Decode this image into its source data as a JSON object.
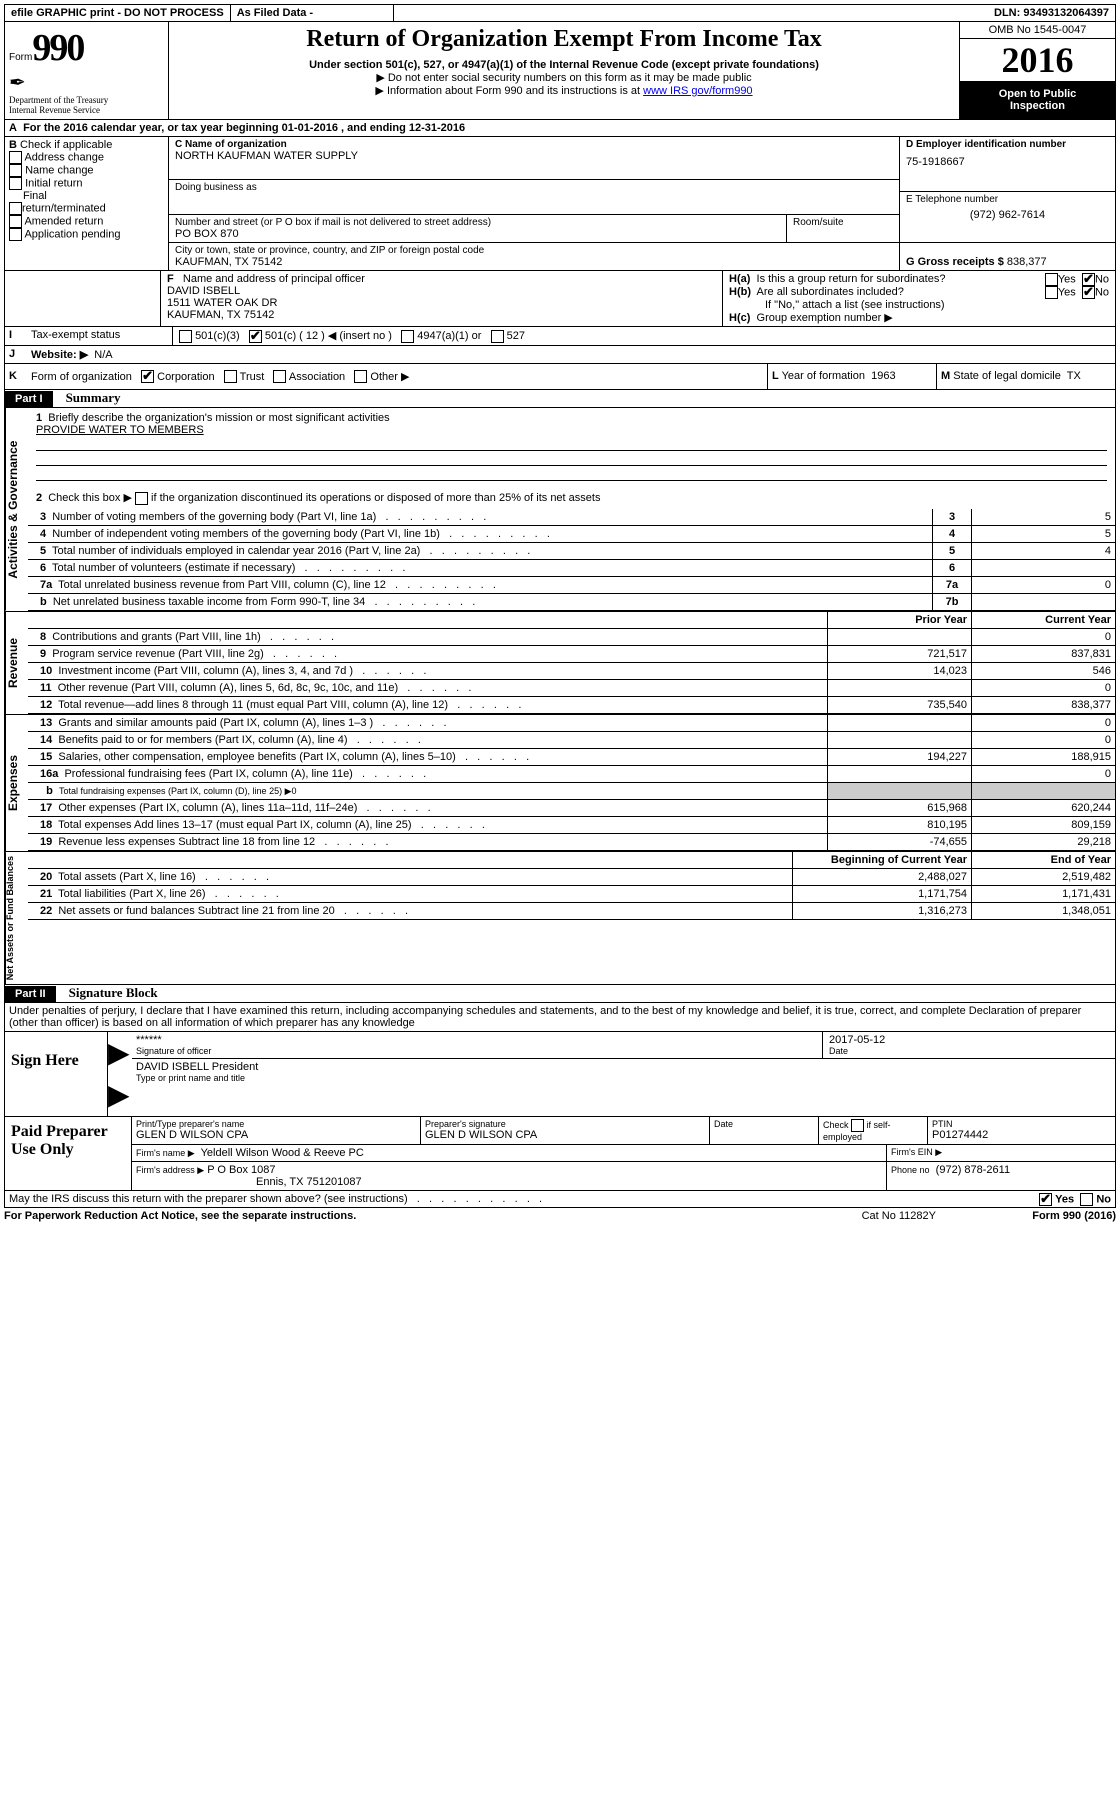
{
  "topbar": {
    "efile": "efile GRAPHIC print - DO NOT PROCESS",
    "asfiled": "As Filed Data -",
    "dln_label": "DLN:",
    "dln": "93493132064397"
  },
  "header": {
    "form_label": "Form",
    "form_no": "990",
    "dept1": "Department of the Treasury",
    "dept2": "Internal Revenue Service",
    "title": "Return of Organization Exempt From Income Tax",
    "sub1": "Under section 501(c), 527, or 4947(a)(1) of the Internal Revenue Code (except private foundations)",
    "sub2": "▶ Do not enter social security numbers on this form as it may be made public",
    "sub3_pre": "▶ Information about Form 990 and its instructions is at ",
    "sub3_link": "www IRS gov/form990",
    "omb_label": "OMB No 1545-0047",
    "year": "2016",
    "open1": "Open to Public",
    "open2": "Inspection"
  },
  "A": {
    "pre": "For the 2016 calendar year, or tax year beginning ",
    "begin": "01-01-2016",
    "mid": " , and ending ",
    "end": "12-31-2016"
  },
  "B": {
    "label": "B",
    "check": "Check if applicable",
    "addr": "Address change",
    "name": "Name change",
    "init": "Initial return",
    "final1": "Final",
    "final2": "return/terminated",
    "amended": "Amended return",
    "app": "Application pending"
  },
  "C": {
    "label_name": "C Name of organization",
    "org": "NORTH KAUFMAN WATER SUPPLY",
    "dba": "Doing business as",
    "street_label": "Number and street (or P O  box if mail is not delivered to street address)",
    "room_label": "Room/suite",
    "street": "PO BOX 870",
    "city_label": "City or town, state or province, country, and ZIP or foreign postal code",
    "city": "KAUFMAN, TX  75142"
  },
  "D": {
    "label": "D Employer identification number",
    "ein": "75-1918667"
  },
  "E": {
    "label": "E Telephone number",
    "phone": "(972) 962-7614"
  },
  "G": {
    "label": "G Gross receipts $",
    "val": "838,377"
  },
  "F": {
    "label": "F   Name and address of principal officer",
    "n": "DAVID ISBELL",
    "a1": "1511 WATER OAK DR",
    "a2": "KAUFMAN, TX  75142"
  },
  "H": {
    "a_label": "H(a)",
    "a_text": "Is this a group return for subordinates?",
    "b_label": "H(b)",
    "b_text": "Are all subordinates included?",
    "note": "If \"No,\" attach a list  (see instructions)",
    "c_label": "H(c)",
    "c_text": "Group exemption number ▶",
    "yes": "Yes",
    "no": "No"
  },
  "I": {
    "label": "I",
    "text": "Tax-exempt status",
    "o1": "501(c)(3)",
    "o2": "501(c) ( 12 ) ◀ (insert no )",
    "o3": "4947(a)(1) or",
    "o4": "527"
  },
  "J": {
    "label": "J",
    "text": "Website: ▶",
    "val": "N/A"
  },
  "K": {
    "label": "K",
    "text": "Form of organization",
    "corp": "Corporation",
    "trust": "Trust",
    "assoc": "Association",
    "other": "Other ▶"
  },
  "L": {
    "label": "L",
    "text": "Year of formation",
    "val": "1963"
  },
  "M": {
    "label": "M",
    "text": "State of legal domicile",
    "val": "TX"
  },
  "part1": {
    "label": "Part I",
    "title": "Summary",
    "sec1": "Activities & Governance",
    "sec2": "Revenue",
    "sec3": "Expenses",
    "sec4": "Net Assets or Fund Balances",
    "l1_label": "1",
    "l1": "Briefly describe the organization's mission or most significant activities",
    "l1_val": "PROVIDE WATER TO MEMBERS",
    "l2_label": "2",
    "l2": "Check this box ▶        if the organization discontinued its operations or disposed of more than 25% of its net assets",
    "lines": [
      {
        "n": "3",
        "t": "Number of voting members of the governing body (Part VI, line 1a)",
        "box": "3",
        "v": "5"
      },
      {
        "n": "4",
        "t": "Number of independent voting members of the governing body (Part VI, line 1b)",
        "box": "4",
        "v": "5"
      },
      {
        "n": "5",
        "t": "Total number of individuals employed in calendar year 2016 (Part V, line 2a)",
        "box": "5",
        "v": "4"
      },
      {
        "n": "6",
        "t": "Total number of volunteers (estimate if necessary)",
        "box": "6",
        "v": ""
      },
      {
        "n": "7a",
        "t": "Total unrelated business revenue from Part VIII, column (C), line 12",
        "box": "7a",
        "v": "0"
      },
      {
        "n": "b",
        "t": "Net unrelated business taxable income from Form 990-T, line 34",
        "box": "7b",
        "v": ""
      }
    ],
    "col_prior": "Prior Year",
    "col_curr": "Current Year",
    "col_boy": "Beginning of Current Year",
    "col_eoy": "End of Year",
    "rev": [
      {
        "n": "8",
        "t": "Contributions and grants (Part VIII, line 1h)",
        "p": "",
        "c": "0"
      },
      {
        "n": "9",
        "t": "Program service revenue (Part VIII, line 2g)",
        "p": "721,517",
        "c": "837,831"
      },
      {
        "n": "10",
        "t": "Investment income (Part VIII, column (A), lines 3, 4, and 7d )",
        "p": "14,023",
        "c": "546"
      },
      {
        "n": "11",
        "t": "Other revenue (Part VIII, column (A), lines 5, 6d, 8c, 9c, 10c, and 11e)",
        "p": "",
        "c": "0"
      },
      {
        "n": "12",
        "t": "Total revenue—add lines 8 through 11 (must equal Part VIII, column (A), line 12)",
        "p": "735,540",
        "c": "838,377"
      }
    ],
    "exp": [
      {
        "n": "13",
        "t": "Grants and similar amounts paid (Part IX, column (A), lines 1–3 )",
        "p": "",
        "c": "0"
      },
      {
        "n": "14",
        "t": "Benefits paid to or for members (Part IX, column (A), line 4)",
        "p": "",
        "c": "0"
      },
      {
        "n": "15",
        "t": "Salaries, other compensation, employee benefits (Part IX, column (A), lines 5–10)",
        "p": "194,227",
        "c": "188,915"
      },
      {
        "n": "16a",
        "t": "Professional fundraising fees (Part IX, column (A), line 11e)",
        "p": "",
        "c": "0"
      },
      {
        "n": "b",
        "t": "Total fundraising expenses (Part IX, column (D), line 25) ▶0",
        "p": "GREY",
        "c": "GREY"
      },
      {
        "n": "17",
        "t": "Other expenses (Part IX, column (A), lines 11a–11d, 11f–24e)",
        "p": "615,968",
        "c": "620,244"
      },
      {
        "n": "18",
        "t": "Total expenses  Add lines 13–17 (must equal Part IX, column (A), line 25)",
        "p": "810,195",
        "c": "809,159"
      },
      {
        "n": "19",
        "t": "Revenue less expenses  Subtract line 18 from line 12",
        "p": "-74,655",
        "c": "29,218"
      }
    ],
    "net": [
      {
        "n": "20",
        "t": "Total assets (Part X, line 16)",
        "p": "2,488,027",
        "c": "2,519,482"
      },
      {
        "n": "21",
        "t": "Total liabilities (Part X, line 26)",
        "p": "1,171,754",
        "c": "1,171,431"
      },
      {
        "n": "22",
        "t": "Net assets or fund balances  Subtract line 21 from line 20",
        "p": "1,316,273",
        "c": "1,348,051"
      }
    ]
  },
  "part2": {
    "label": "Part II",
    "title": "Signature Block",
    "declaration": "Under penalties of perjury, I declare that I have examined this return, including accompanying schedules and statements, and to the best of my knowledge and belief, it is true, correct, and complete  Declaration of preparer (other than officer) is based on all information of which preparer has any knowledge",
    "sign_label": "Sign Here",
    "sig_stars": "******",
    "sig_officer": "Signature of officer",
    "sig_date": "2017-05-12",
    "date_label": "Date",
    "sig_name": "DAVID ISBELL President",
    "sig_name_label": "Type or print name and title",
    "paid_label": "Paid Preparer Use Only",
    "prep_name_label": "Print/Type preparer's name",
    "prep_name": "GLEN D WILSON CPA",
    "prep_sig_label": "Preparer's signature",
    "prep_sig": "GLEN D WILSON CPA",
    "prep_date_label": "Date",
    "check_if": "Check         if self-employed",
    "ptin_label": "PTIN",
    "ptin": "P01274442",
    "firm_name_label": "Firm's name      ▶",
    "firm_name": "Yeldell Wilson Wood & Reeve PC",
    "firm_ein_label": "Firm's EIN ▶",
    "firm_addr_label": "Firm's address ▶",
    "firm_addr1": "P O Box 1087",
    "firm_addr2": "Ennis, TX  751201087",
    "firm_phone_label": "Phone no",
    "firm_phone": "(972) 878-2611",
    "irs_discuss": "May the IRS discuss this return with the preparer shown above? (see instructions)",
    "yes": "Yes",
    "no": "No"
  },
  "footer": {
    "pra": "For Paperwork Reduction Act Notice, see the separate instructions.",
    "cat": "Cat  No  11282Y",
    "form": "Form 990 (2016)"
  }
}
